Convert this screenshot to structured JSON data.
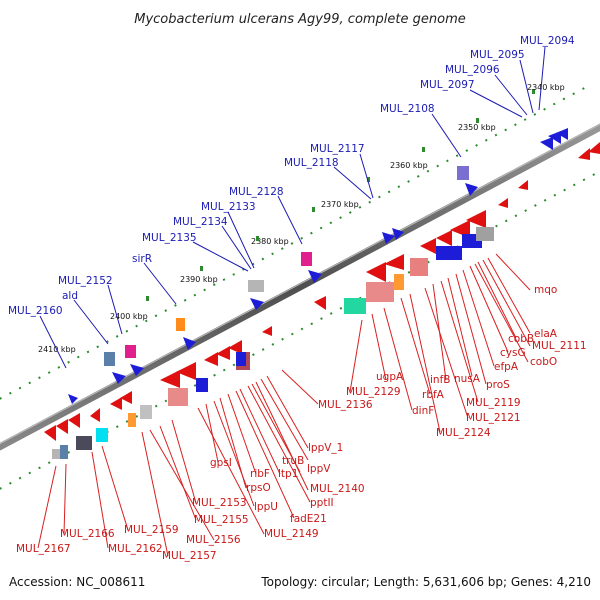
{
  "title": "Mycobacterium ulcerans Agy99, complete genome",
  "footer": {
    "accession": "Accession: NC_008611",
    "summary": "Topology: circular; Length: 5,631,606 bp; Genes: 4,210"
  },
  "ticks": [
    "2340 kbp",
    "2350 kbp",
    "2360 kbp",
    "2370 kbp",
    "2380 kbp",
    "2390 kbp",
    "2400 kbp",
    "2410 kbp"
  ],
  "labels_top": [
    "MUL_2094",
    "MUL_2095",
    "MUL_2096",
    "MUL_2097",
    "MUL_2108",
    "MUL_2117",
    "MUL_2118",
    "MUL_2128",
    "MUL_2133",
    "MUL_2134",
    "MUL_2135",
    "sirR",
    "MUL_2152",
    "ald",
    "MUL_2160"
  ],
  "labels_bottom": [
    "mqo",
    "elaA",
    "MUL_2111",
    "cobB",
    "cysG",
    "cobO",
    "efpA",
    "proS",
    "nusA",
    "infB",
    "MUL_2119",
    "ugpA",
    "rbfA",
    "MUL_2121",
    "dinF",
    "MUL_2124",
    "MUL_2129",
    "MUL_2136",
    "lppV_1",
    "truB",
    "lppV",
    "ltp1",
    "pptII",
    "MUL_2140",
    "ribF",
    "rpsO",
    "gpsI",
    "fadE21",
    "lppU",
    "MUL_2149",
    "MUL_2153",
    "MUL_2155",
    "MUL_2156",
    "MUL_2157",
    "MUL_2159",
    "MUL_2162",
    "MUL_2166",
    "MUL_2167"
  ],
  "colors": {
    "backbone": "#6b6b6b",
    "forward_gene": "#1d1dd8",
    "reverse_gene": "#e01010",
    "tick": "#2e8b2e",
    "label_blue": "#1b1bb3",
    "label_red": "#c81818"
  }
}
